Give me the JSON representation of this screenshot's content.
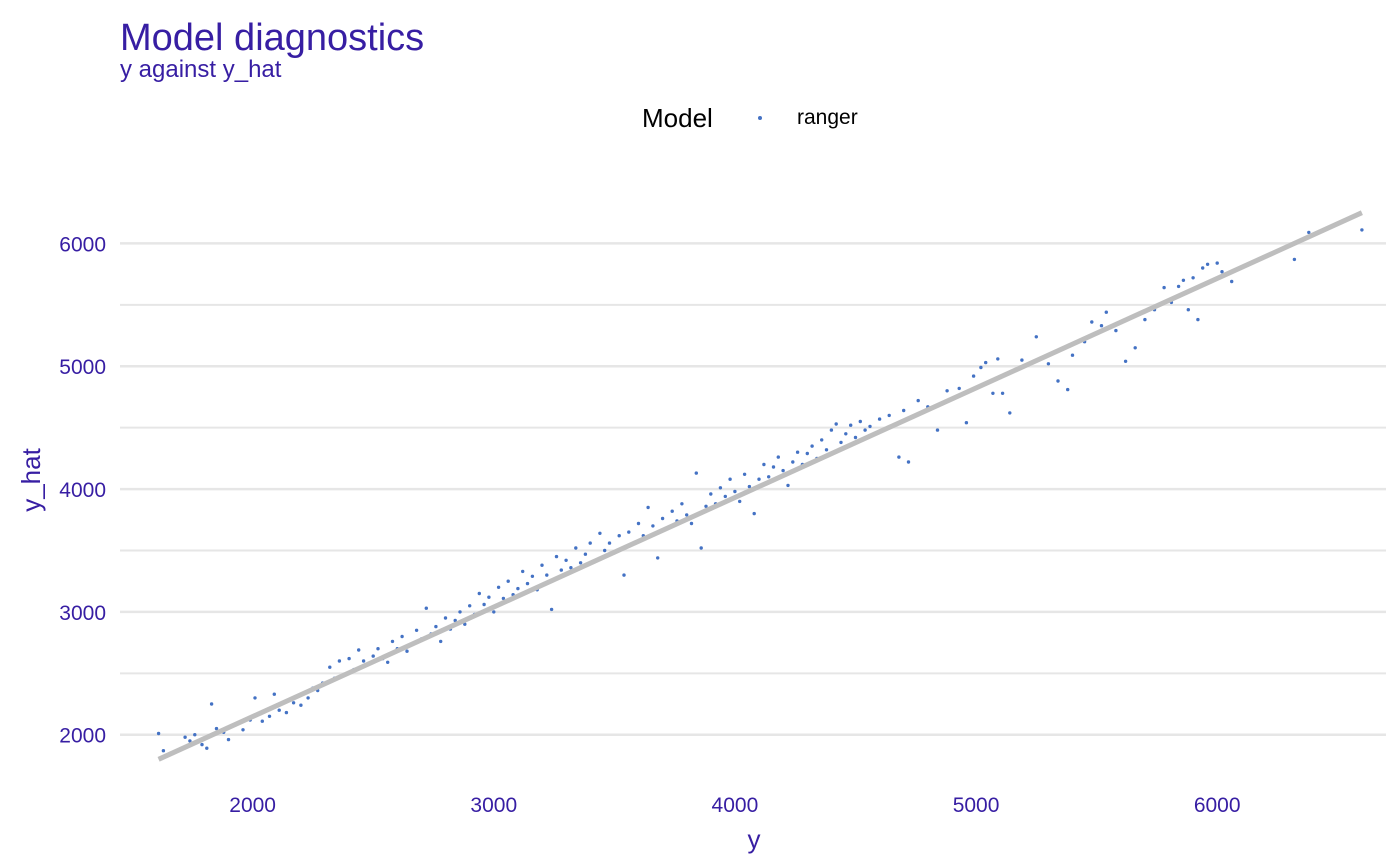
{
  "chart_data": {
    "type": "scatter",
    "title": "Model diagnostics",
    "subtitle": "y against y_hat",
    "xlabel": "y",
    "ylabel": "y_hat",
    "xlim": [
      1450,
      6700
    ],
    "ylim": [
      1550,
      6500
    ],
    "x_ticks": [
      2000,
      3000,
      4000,
      5000,
      6000
    ],
    "y_ticks": [
      2000,
      3000,
      4000,
      5000,
      6000
    ],
    "y_minor_gridlines": [
      2500,
      3500,
      4500,
      5500
    ],
    "grid": "horizontal",
    "legend": {
      "title": "Model",
      "placement": "top",
      "entries": [
        {
          "name": "ranger",
          "color": "#4472C4"
        }
      ]
    },
    "series": [
      {
        "name": "ranger",
        "color": "#4472C4",
        "points": [
          [
            1610,
            2010
          ],
          [
            1630,
            1870
          ],
          [
            1720,
            1980
          ],
          [
            1740,
            1950
          ],
          [
            1760,
            2000
          ],
          [
            1790,
            1920
          ],
          [
            1810,
            1890
          ],
          [
            1830,
            2250
          ],
          [
            1850,
            2050
          ],
          [
            1880,
            2020
          ],
          [
            1900,
            1960
          ],
          [
            1930,
            2080
          ],
          [
            1960,
            2040
          ],
          [
            1990,
            2120
          ],
          [
            2010,
            2300
          ],
          [
            2040,
            2110
          ],
          [
            2070,
            2150
          ],
          [
            2090,
            2330
          ],
          [
            2110,
            2200
          ],
          [
            2140,
            2180
          ],
          [
            2170,
            2260
          ],
          [
            2200,
            2240
          ],
          [
            2230,
            2300
          ],
          [
            2250,
            2380
          ],
          [
            2270,
            2360
          ],
          [
            2290,
            2420
          ],
          [
            2320,
            2550
          ],
          [
            2340,
            2460
          ],
          [
            2360,
            2600
          ],
          [
            2380,
            2490
          ],
          [
            2400,
            2620
          ],
          [
            2420,
            2530
          ],
          [
            2440,
            2690
          ],
          [
            2460,
            2600
          ],
          [
            2480,
            2580
          ],
          [
            2500,
            2640
          ],
          [
            2520,
            2700
          ],
          [
            2540,
            2620
          ],
          [
            2560,
            2590
          ],
          [
            2580,
            2760
          ],
          [
            2600,
            2700
          ],
          [
            2620,
            2800
          ],
          [
            2640,
            2680
          ],
          [
            2660,
            2740
          ],
          [
            2680,
            2850
          ],
          [
            2700,
            2780
          ],
          [
            2720,
            3030
          ],
          [
            2740,
            2820
          ],
          [
            2760,
            2880
          ],
          [
            2780,
            2760
          ],
          [
            2800,
            2950
          ],
          [
            2820,
            2860
          ],
          [
            2840,
            2930
          ],
          [
            2860,
            3000
          ],
          [
            2880,
            2900
          ],
          [
            2900,
            3050
          ],
          [
            2920,
            2980
          ],
          [
            2940,
            3150
          ],
          [
            2960,
            3060
          ],
          [
            2980,
            3120
          ],
          [
            3000,
            3000
          ],
          [
            3020,
            3200
          ],
          [
            3040,
            3110
          ],
          [
            3060,
            3250
          ],
          [
            3080,
            3140
          ],
          [
            3100,
            3190
          ],
          [
            3120,
            3330
          ],
          [
            3140,
            3230
          ],
          [
            3160,
            3290
          ],
          [
            3180,
            3180
          ],
          [
            3200,
            3380
          ],
          [
            3220,
            3300
          ],
          [
            3240,
            3020
          ],
          [
            3260,
            3450
          ],
          [
            3280,
            3340
          ],
          [
            3300,
            3420
          ],
          [
            3320,
            3360
          ],
          [
            3340,
            3520
          ],
          [
            3360,
            3400
          ],
          [
            3380,
            3470
          ],
          [
            3400,
            3560
          ],
          [
            3420,
            3410
          ],
          [
            3440,
            3640
          ],
          [
            3460,
            3500
          ],
          [
            3480,
            3560
          ],
          [
            3500,
            3480
          ],
          [
            3520,
            3620
          ],
          [
            3540,
            3300
          ],
          [
            3560,
            3650
          ],
          [
            3580,
            3560
          ],
          [
            3600,
            3720
          ],
          [
            3620,
            3620
          ],
          [
            3640,
            3850
          ],
          [
            3660,
            3700
          ],
          [
            3680,
            3440
          ],
          [
            3700,
            3760
          ],
          [
            3720,
            3680
          ],
          [
            3740,
            3820
          ],
          [
            3760,
            3740
          ],
          [
            3780,
            3880
          ],
          [
            3800,
            3790
          ],
          [
            3820,
            3720
          ],
          [
            3840,
            4130
          ],
          [
            3860,
            3520
          ],
          [
            3880,
            3860
          ],
          [
            3900,
            3960
          ],
          [
            3920,
            3880
          ],
          [
            3940,
            4010
          ],
          [
            3960,
            3940
          ],
          [
            3980,
            4080
          ],
          [
            4000,
            3980
          ],
          [
            4020,
            3900
          ],
          [
            4040,
            4120
          ],
          [
            4060,
            4020
          ],
          [
            4080,
            3800
          ],
          [
            4100,
            4080
          ],
          [
            4120,
            4200
          ],
          [
            4140,
            4100
          ],
          [
            4160,
            4180
          ],
          [
            4180,
            4260
          ],
          [
            4200,
            4150
          ],
          [
            4220,
            4030
          ],
          [
            4240,
            4220
          ],
          [
            4260,
            4300
          ],
          [
            4280,
            4200
          ],
          [
            4300,
            4290
          ],
          [
            4320,
            4350
          ],
          [
            4340,
            4250
          ],
          [
            4360,
            4400
          ],
          [
            4380,
            4320
          ],
          [
            4400,
            4480
          ],
          [
            4420,
            4530
          ],
          [
            4440,
            4380
          ],
          [
            4460,
            4450
          ],
          [
            4480,
            4520
          ],
          [
            4500,
            4420
          ],
          [
            4520,
            4550
          ],
          [
            4540,
            4480
          ],
          [
            4560,
            4510
          ],
          [
            4600,
            4570
          ],
          [
            4640,
            4600
          ],
          [
            4680,
            4260
          ],
          [
            4700,
            4640
          ],
          [
            4720,
            4220
          ],
          [
            4760,
            4720
          ],
          [
            4800,
            4670
          ],
          [
            4840,
            4480
          ],
          [
            4880,
            4800
          ],
          [
            4930,
            4820
          ],
          [
            4960,
            4540
          ],
          [
            4990,
            4920
          ],
          [
            5020,
            4990
          ],
          [
            5040,
            5030
          ],
          [
            5070,
            4780
          ],
          [
            5090,
            5060
          ],
          [
            5110,
            4780
          ],
          [
            5140,
            4620
          ],
          [
            5190,
            5050
          ],
          [
            5250,
            5240
          ],
          [
            5300,
            5020
          ],
          [
            5340,
            4880
          ],
          [
            5380,
            4810
          ],
          [
            5400,
            5090
          ],
          [
            5450,
            5200
          ],
          [
            5480,
            5360
          ],
          [
            5520,
            5330
          ],
          [
            5540,
            5440
          ],
          [
            5580,
            5290
          ],
          [
            5620,
            5040
          ],
          [
            5660,
            5150
          ],
          [
            5700,
            5380
          ],
          [
            5740,
            5460
          ],
          [
            5780,
            5640
          ],
          [
            5810,
            5520
          ],
          [
            5840,
            5650
          ],
          [
            5860,
            5700
          ],
          [
            5880,
            5460
          ],
          [
            5900,
            5720
          ],
          [
            5920,
            5380
          ],
          [
            5940,
            5800
          ],
          [
            5960,
            5830
          ],
          [
            5980,
            5700
          ],
          [
            6000,
            5840
          ],
          [
            6020,
            5770
          ],
          [
            6060,
            5690
          ],
          [
            6320,
            5870
          ],
          [
            6380,
            6090
          ],
          [
            6600,
            6110
          ]
        ]
      }
    ],
    "reference_line": {
      "from": [
        1610,
        1800
      ],
      "to": [
        6600,
        6250
      ],
      "color": "#BEBEBE"
    }
  },
  "colors": {
    "title": "#371EA3",
    "axis_text": "#371EA3",
    "grid": "#E6E6E6",
    "legend_text": "#000000"
  }
}
